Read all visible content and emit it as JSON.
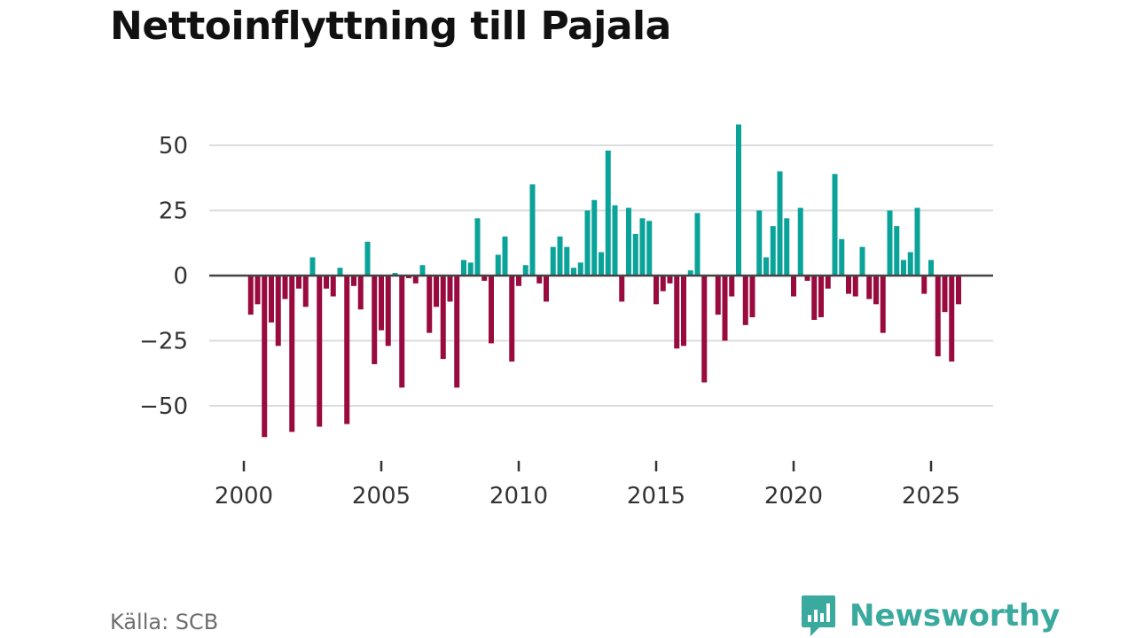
{
  "title": "Nettoinflyttning till Pajala",
  "source": "Källa: SCB",
  "brand": "Newsworthy",
  "colors": {
    "positive": "#0aa39a",
    "negative": "#990a3f",
    "zero_line": "#444444",
    "grid": "#dddddd"
  },
  "chart_data": {
    "type": "bar",
    "title": "Nettoinflyttning till Pajala",
    "xlabel": "",
    "ylabel": "",
    "frequency": "quarterly",
    "x_start": 2000.25,
    "x_step": 0.25,
    "xlim": [
      1999.2,
      2027.4
    ],
    "ylim": [
      -62,
      60
    ],
    "x_ticks": [
      2000,
      2005,
      2010,
      2015,
      2020,
      2025
    ],
    "y_ticks": [
      50,
      25,
      0,
      -25,
      -50
    ],
    "y_tick_labels": [
      "50",
      "25",
      "0",
      "−25",
      "−50"
    ],
    "values": [
      -15,
      -11,
      -62,
      -18,
      -27,
      -9,
      -60,
      -5,
      -12,
      7,
      -58,
      -5,
      -8,
      3,
      -57,
      -4,
      -13,
      13,
      -34,
      -21,
      -27,
      1,
      -43,
      -1,
      -3,
      4,
      -22,
      -12,
      -32,
      -10,
      -43,
      6,
      5,
      22,
      -2,
      -26,
      8,
      15,
      -33,
      -4,
      4,
      35,
      -3,
      -10,
      11,
      15,
      11,
      3,
      5,
      25,
      29,
      9,
      48,
      27,
      -10,
      26,
      16,
      22,
      21,
      -11,
      -6,
      -3,
      -28,
      -27,
      2,
      24,
      -41,
      0,
      -15,
      -25,
      -8,
      58,
      -19,
      -16,
      25,
      7,
      19,
      40,
      22,
      -8,
      26,
      -2,
      -17,
      -16,
      -5,
      39,
      14,
      -7,
      -8,
      11,
      -9,
      -11,
      -22,
      25,
      19,
      6,
      9,
      26,
      -7,
      6,
      -31,
      -14,
      -33,
      -11
    ]
  }
}
